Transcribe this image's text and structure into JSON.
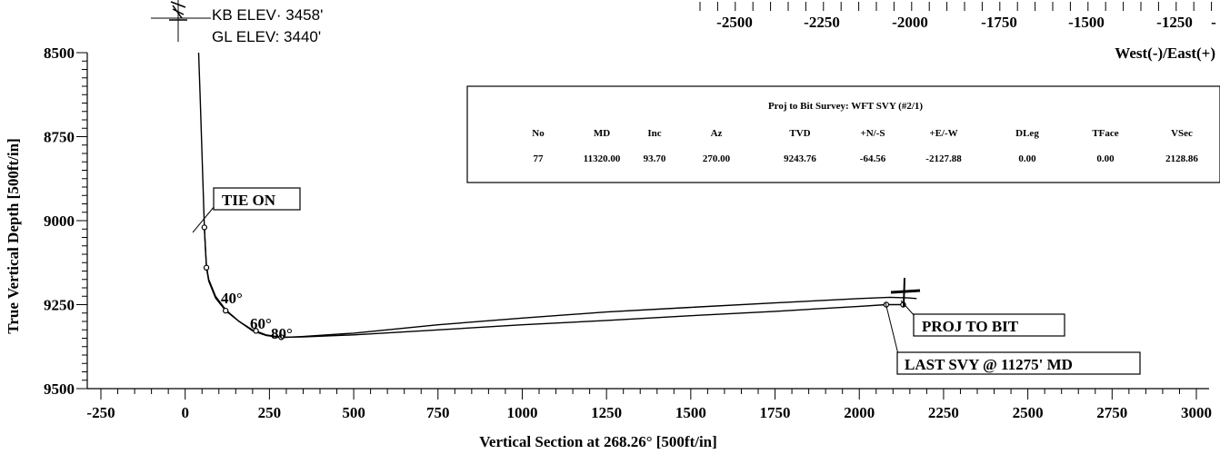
{
  "header": {
    "kb_elev": "KB ELEV· 3458'",
    "gl_elev": "GL ELEV: 3440'"
  },
  "top_axis": {
    "ticks": [
      "-2500",
      "-2250",
      "-2000",
      "-1750",
      "-1500",
      "-1250",
      "-"
    ],
    "label": "West(-)/East(+)"
  },
  "survey_table": {
    "title": "Proj to Bit Survey: WFT SVY (#2/1)",
    "columns": [
      "No",
      "MD",
      "Inc",
      "Az",
      "TVD",
      "+N/-S",
      "+E/-W",
      "DLeg",
      "TFace",
      "VSec"
    ],
    "row": [
      "77",
      "11320.00",
      "93.70",
      "270.00",
      "9243.76",
      "-64.56",
      "-2127.88",
      "0.00",
      "0.00",
      "2128.86"
    ]
  },
  "callouts": {
    "tie_on": "TIE ON",
    "proj_to_bit": "PROJ TO BIT",
    "last_svy": "LAST SVY @ 11275' MD"
  },
  "inclination_labels": [
    "40°",
    "60°",
    "80°"
  ],
  "chart_data": {
    "type": "line",
    "xlabel": "Vertical Section at 268.26° [500ft/in]",
    "ylabel": "True Vertical Depth [500ft/in]",
    "xlim": [
      -250,
      3000
    ],
    "ylim": [
      8500,
      9500
    ],
    "y_inverted": true,
    "x_ticks": [
      "-250",
      "0",
      "250",
      "500",
      "750",
      "1000",
      "1250",
      "1500",
      "1750",
      "2000",
      "2250",
      "2500",
      "2750",
      "3000"
    ],
    "y_ticks": [
      "8500",
      "8750",
      "9000",
      "9250",
      "9500"
    ],
    "series": [
      {
        "x": [
          40,
          45,
          50,
          55,
          57,
          60,
          63,
          70,
          90,
          120,
          160,
          200,
          240,
          270,
          285,
          350,
          500,
          750,
          1000,
          1250,
          1500,
          1750,
          2000,
          2080,
          2130
        ],
        "y": [
          8500,
          8650,
          8800,
          8960,
          9020,
          9080,
          9135,
          9175,
          9225,
          9265,
          9300,
          9325,
          9340,
          9345,
          9347,
          9346,
          9340,
          9325,
          9310,
          9297,
          9283,
          9270,
          9255,
          9250,
          9250
        ]
      },
      {
        "x": [
          57,
          63,
          70,
          90,
          120,
          160,
          200,
          240,
          270,
          285,
          350,
          500,
          750,
          1000,
          1250,
          1500,
          1750,
          2000,
          2090,
          2145,
          2170
        ],
        "y": [
          9020,
          9140,
          9180,
          9230,
          9268,
          9300,
          9328,
          9342,
          9346,
          9348,
          9345,
          9335,
          9310,
          9290,
          9272,
          9258,
          9245,
          9232,
          9228,
          9230,
          9232
        ]
      }
    ],
    "markers": [
      {
        "x": 57,
        "y": 9020
      },
      {
        "x": 63,
        "y": 9140
      },
      {
        "x": 120,
        "y": 9268
      },
      {
        "x": 210,
        "y": 9328
      },
      {
        "x": 285,
        "y": 9347
      },
      {
        "x": 2080,
        "y": 9250
      },
      {
        "x": 2130,
        "y": 9250
      }
    ]
  }
}
